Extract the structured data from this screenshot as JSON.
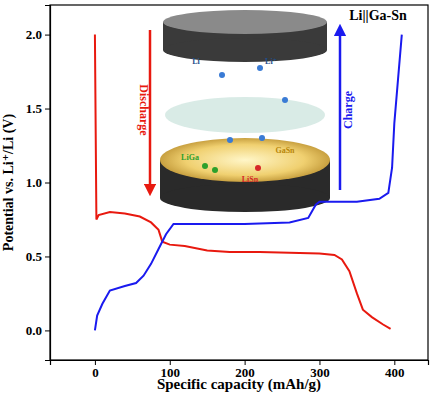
{
  "chart_data": {
    "type": "line",
    "x_label": "Specific capacity (mAh/g)",
    "y_label": "Potential vs. Li⁺/Li (V)",
    "xlim": [
      -60,
      445
    ],
    "xticks": [
      0,
      100,
      200,
      300,
      400
    ],
    "ylim": [
      -0.2,
      2.2
    ],
    "yticks": [
      {
        "value": 0,
        "label": "0.0"
      },
      {
        "value": 0.5,
        "label": "0.5"
      },
      {
        "value": 1,
        "label": "1.0"
      },
      {
        "value": 1.5,
        "label": "1.5"
      },
      {
        "value": 2,
        "label": "2.0"
      }
    ],
    "grid": false,
    "series": [
      {
        "color": "#e8190f",
        "x": [
          0,
          2,
          5,
          20,
          40,
          60,
          75,
          85,
          90,
          100,
          120,
          150,
          180,
          220,
          260,
          300,
          320,
          330,
          340,
          350,
          358,
          370,
          385,
          395
        ],
        "values": [
          2.0,
          0.75,
          0.78,
          0.8,
          0.79,
          0.77,
          0.73,
          0.68,
          0.6,
          0.58,
          0.57,
          0.54,
          0.53,
          0.53,
          0.525,
          0.52,
          0.51,
          0.48,
          0.4,
          0.25,
          0.14,
          0.09,
          0.04,
          0.01
        ]
      },
      {
        "color": "#1a1aef",
        "x": [
          0,
          3,
          10,
          20,
          40,
          55,
          65,
          75,
          85,
          95,
          105,
          130,
          200,
          260,
          285,
          295,
          300,
          350,
          380,
          392,
          397,
          400,
          405,
          410
        ],
        "values": [
          0.0,
          0.1,
          0.18,
          0.27,
          0.3,
          0.32,
          0.37,
          0.45,
          0.55,
          0.65,
          0.72,
          0.72,
          0.72,
          0.73,
          0.76,
          0.85,
          0.87,
          0.87,
          0.89,
          0.93,
          1.1,
          1.4,
          1.7,
          2.0
        ]
      }
    ],
    "annotations": [
      {
        "text": "Li||Ga-Sn"
      },
      {
        "text": "Discharge"
      },
      {
        "text": "Charge"
      },
      {
        "text": "Li"
      },
      {
        "text": "Li⁺"
      },
      {
        "text": "GaSn"
      },
      {
        "text": "LiGa"
      },
      {
        "text": "LiSn"
      }
    ]
  }
}
